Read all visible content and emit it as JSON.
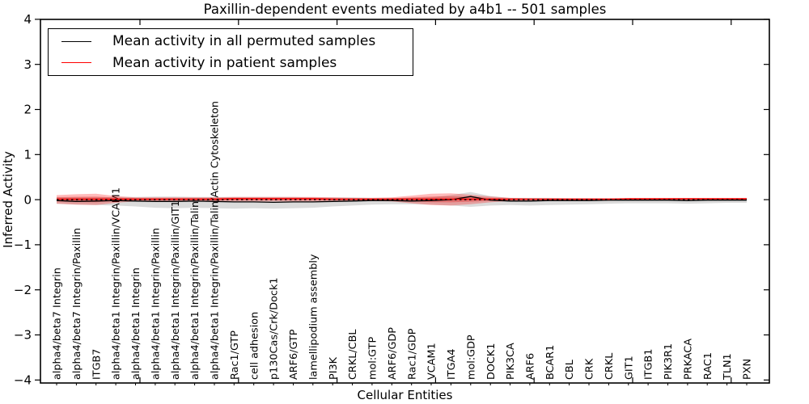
{
  "figure": {
    "title": "Paxillin-dependent events mediated by a4b1 -- 501 samples",
    "background": "#ffffff"
  },
  "legend": {
    "items": [
      {
        "label": "Mean activity in all permuted samples",
        "color": "#000000"
      },
      {
        "label": "Mean activity in patient samples",
        "color": "#ff0000"
      }
    ]
  },
  "chart_data": {
    "type": "line",
    "title": "Paxillin-dependent events mediated by a4b1 -- 501 samples",
    "xlabel": "Cellular Entities",
    "ylabel": "Inferred Activity",
    "ylim": [
      -4,
      4
    ],
    "yticks": [
      4,
      3,
      2,
      1,
      0,
      -1,
      -2,
      -3,
      -4
    ],
    "grid": false,
    "legend_position": "upper left",
    "zero_line": {
      "y": 0,
      "style": "dashed",
      "color": "#000000"
    },
    "categories": [
      "alpha4/beta7 Integrin",
      "alpha4/beta7 Integrin/Paxillin",
      "ITGB7",
      "alpha4/beta1 Integrin/Paxillin/VCAM1",
      "alpha4/beta1 Integrin",
      "alpha4/beta1 Integrin/Paxillin",
      "alpha4/beta1 Integrin/Paxillin/GIT1",
      "alpha4/beta1 Integrin/Paxillin/Talin",
      "alpha4/beta1 Integrin/Paxillin/Talin/Actin Cytoskeleton",
      "Rac1/GTP",
      "cell adhesion",
      "p130Cas/Crk/Dock1",
      "ARF6/GTP",
      "lamellipodium assembly",
      "PI3K",
      "CRKL/CBL",
      "mol:GTP",
      "ARF6/GDP",
      "Rac1/GDP",
      "VCAM1",
      "ITGA4",
      "mol:GDP",
      "DOCK1",
      "PIK3CA",
      "ARF6",
      "BCAR1",
      "CBL",
      "CRK",
      "CRKL",
      "GIT1",
      "ITGB1",
      "PIK3R1",
      "PRKACA",
      "RAC1",
      "TLN1",
      "PXN"
    ],
    "series": [
      {
        "name": "Mean activity in all permuted samples",
        "color": "#000000",
        "band_color": "rgba(0,0,0,0.14)",
        "values": [
          -0.02,
          -0.04,
          -0.03,
          -0.02,
          -0.03,
          -0.04,
          -0.04,
          -0.03,
          -0.04,
          -0.05,
          -0.05,
          -0.06,
          -0.05,
          -0.05,
          -0.04,
          -0.03,
          -0.02,
          -0.02,
          -0.03,
          -0.02,
          0.0,
          0.07,
          -0.01,
          -0.03,
          -0.03,
          -0.02,
          -0.02,
          -0.02,
          -0.01,
          -0.01,
          -0.01,
          -0.01,
          -0.02,
          -0.01,
          -0.01,
          -0.01
        ],
        "band_upper": [
          0.05,
          0.05,
          0.05,
          0.06,
          0.06,
          0.07,
          0.07,
          0.06,
          0.06,
          0.06,
          0.06,
          0.06,
          0.06,
          0.05,
          0.05,
          0.05,
          0.04,
          0.04,
          0.04,
          0.05,
          0.1,
          0.17,
          0.08,
          0.04,
          0.04,
          0.04,
          0.03,
          0.03,
          0.03,
          0.03,
          0.03,
          0.03,
          0.03,
          0.03,
          0.03,
          0.04
        ],
        "band_lower": [
          -0.09,
          -0.11,
          -0.12,
          -0.13,
          -0.15,
          -0.18,
          -0.19,
          -0.18,
          -0.19,
          -0.2,
          -0.19,
          -0.2,
          -0.19,
          -0.18,
          -0.15,
          -0.13,
          -0.11,
          -0.1,
          -0.1,
          -0.11,
          -0.13,
          -0.16,
          -0.13,
          -0.12,
          -0.13,
          -0.12,
          -0.11,
          -0.1,
          -0.09,
          -0.08,
          -0.08,
          -0.08,
          -0.09,
          -0.08,
          -0.07,
          -0.07
        ]
      },
      {
        "name": "Mean activity in patient samples",
        "color": "#ff0000",
        "band_color": "rgba(255,0,0,0.27)",
        "band_inner_color": "rgba(220,0,0,0.28)",
        "values": [
          0.01,
          0.01,
          0.01,
          0.01,
          0.01,
          0.01,
          0.01,
          0.01,
          0.01,
          0.02,
          0.02,
          0.02,
          0.02,
          0.02,
          0.01,
          0.01,
          0.01,
          0.01,
          0.01,
          0.01,
          0.01,
          0.01,
          0.01,
          0.01,
          0.01,
          0.01,
          0.01,
          0.01,
          0.01,
          0.02,
          0.02,
          0.02,
          0.02,
          0.02,
          0.02,
          0.02
        ],
        "band_upper": [
          0.1,
          0.12,
          0.13,
          0.08,
          0.05,
          0.05,
          0.05,
          0.05,
          0.05,
          0.06,
          0.06,
          0.06,
          0.06,
          0.06,
          0.05,
          0.04,
          0.04,
          0.05,
          0.09,
          0.13,
          0.14,
          0.11,
          0.07,
          0.04,
          0.03,
          0.03,
          0.03,
          0.03,
          0.03,
          0.03,
          0.03,
          0.03,
          0.03,
          0.03,
          0.03,
          0.03
        ],
        "band_lower": [
          -0.09,
          -0.11,
          -0.12,
          -0.07,
          -0.04,
          -0.04,
          -0.04,
          -0.04,
          -0.04,
          -0.04,
          -0.04,
          -0.04,
          -0.04,
          -0.04,
          -0.03,
          -0.03,
          -0.03,
          -0.04,
          -0.08,
          -0.12,
          -0.13,
          -0.1,
          -0.06,
          -0.03,
          -0.02,
          -0.02,
          -0.02,
          -0.02,
          -0.02,
          -0.02,
          -0.02,
          -0.02,
          -0.02,
          -0.02,
          -0.02,
          -0.02
        ]
      }
    ]
  }
}
